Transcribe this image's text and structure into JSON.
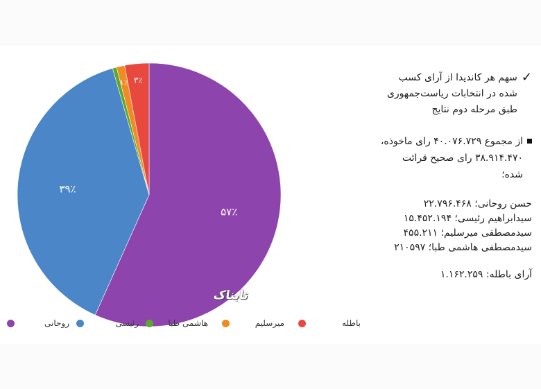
{
  "chart_data": {
    "type": "pie",
    "series": [
      {
        "name": "روحانی",
        "value": 57,
        "label": "۵۷٪",
        "color": "#8e44ad"
      },
      {
        "name": "رئیسی",
        "value": 39,
        "label": "۳۹٪",
        "color": "#4a86c8"
      },
      {
        "name": "هاشمی طبا",
        "value": 0.5,
        "label": "",
        "color": "#5ba92a"
      },
      {
        "name": "میرسلیم",
        "value": 1,
        "label": "۱٪",
        "color": "#f28a22"
      },
      {
        "name": "باطله",
        "value": 3,
        "label": "۳٪",
        "color": "#e8493f"
      }
    ],
    "legend_position": "bottom"
  },
  "watermark": "تابناک",
  "side": {
    "heading": "سهم هر کاندیدا از آرای کسب شده در انتخابات ریاست‌جمهوری طبق مرحله دوم نتایج",
    "total_text": "از مجموع ۴۰.۰۷۶.۷۲۹ رای ماخوذه، ۳۸.۹۱۴.۴۷۰ رای صحیح قرائت شده؛",
    "votes": [
      "حسن روحانی؛ ۲۲.۷۹۶.۴۶۸",
      "سیدابراهیم رئیسی؛ ۱۵.۴۵۲.۱۹۴",
      "سیدمصطفی میرسلیم؛ ۴۵۵.۲۱۱",
      "سیدمصطفی هاشمی طبا؛ ۲۱۰۵۹۷"
    ],
    "invalid": "آرای باطله: ۱.۱۶۲.۲۵۹"
  }
}
